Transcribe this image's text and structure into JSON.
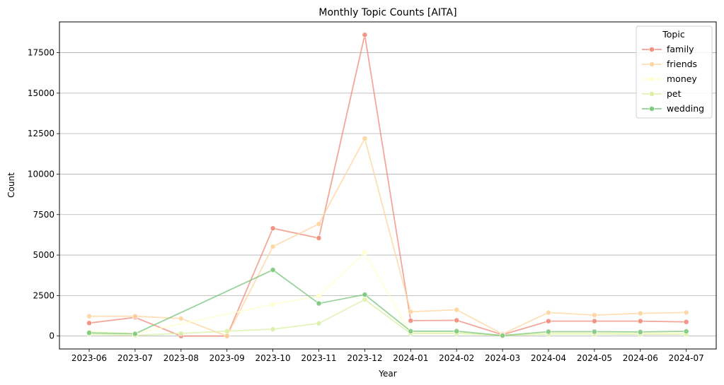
{
  "chart_data": {
    "type": "line",
    "title": "Monthly Topic Counts [AITA]",
    "xlabel": "Year",
    "ylabel": "Count",
    "ylim": [
      -800,
      19400
    ],
    "yticks": [
      0,
      2500,
      5000,
      7500,
      10000,
      12500,
      15000,
      17500
    ],
    "grid": "horizontal",
    "legend": {
      "title": "Topic",
      "placement": "top-right"
    },
    "categories": [
      "2023-06",
      "2023-07",
      "2023-08",
      "2023-09",
      "2023-10",
      "2023-11",
      "2023-12",
      "2024-01",
      "2024-02",
      "2024-03",
      "2024-04",
      "2024-05",
      "2024-06",
      "2024-07"
    ],
    "series": [
      {
        "name": "family",
        "color": "#f08a78",
        "values": [
          800,
          1150,
          0,
          0,
          6650,
          6050,
          18600,
          950,
          970,
          80,
          920,
          920,
          920,
          870
        ],
        "missing": []
      },
      {
        "name": "friends",
        "color": "#fdd49e",
        "values": [
          1220,
          1220,
          1080,
          0,
          5520,
          6920,
          12200,
          1500,
          1620,
          120,
          1450,
          1290,
          1400,
          1450
        ],
        "missing": []
      },
      {
        "name": "money",
        "color": "#ffffcc",
        "values": [
          300,
          160,
          null,
          null,
          1950,
          2480,
          5150,
          200,
          220,
          40,
          180,
          180,
          170,
          170
        ],
        "missing": [
          2,
          3
        ]
      },
      {
        "name": "pet",
        "color": "#d9f0a3",
        "values": [
          120,
          40,
          160,
          300,
          420,
          780,
          2250,
          150,
          160,
          30,
          120,
          120,
          110,
          110
        ],
        "missing": []
      },
      {
        "name": "wedding",
        "color": "#78c679",
        "values": [
          200,
          140,
          null,
          null,
          4080,
          2010,
          2560,
          300,
          300,
          30,
          270,
          270,
          250,
          290
        ],
        "missing": [
          2,
          3
        ]
      }
    ]
  }
}
